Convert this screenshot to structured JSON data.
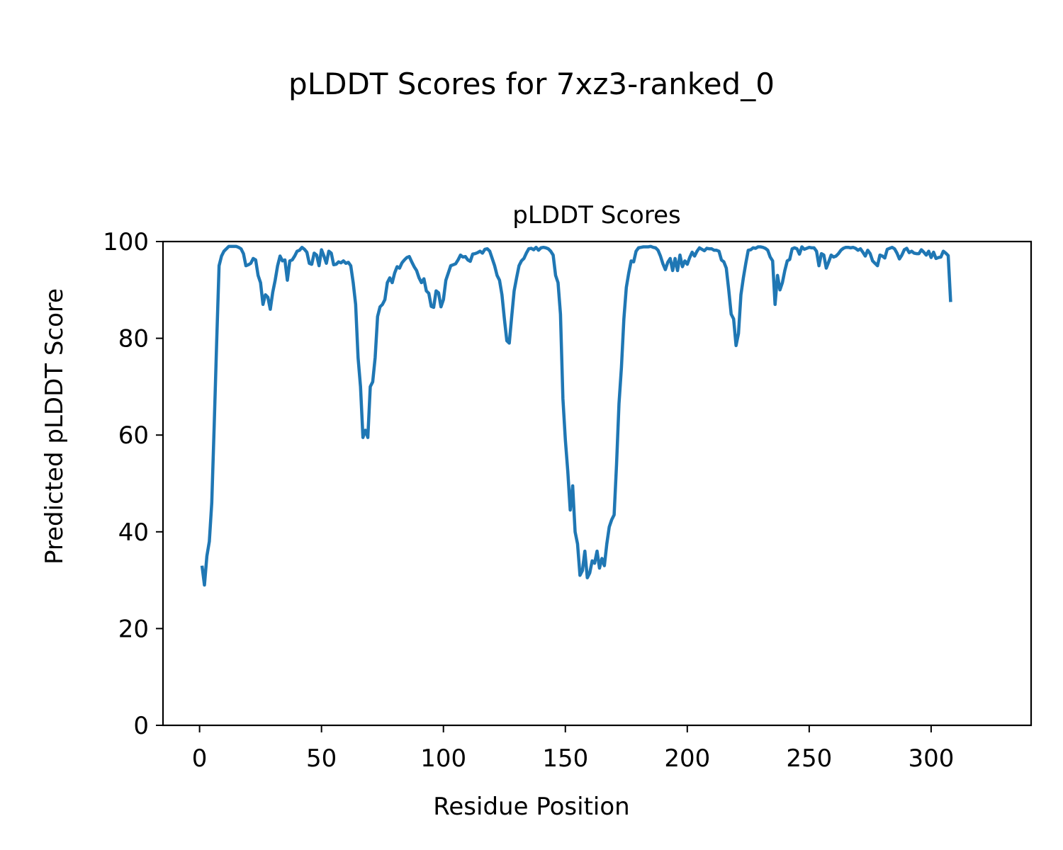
{
  "figure": {
    "suptitle": "pLDDT Scores for 7xz3-ranked_0"
  },
  "chart_data": {
    "type": "line",
    "title": "pLDDT Scores",
    "xlabel": "Residue Position",
    "ylabel": "Predicted pLDDT Score",
    "xlim": [
      -15,
      341
    ],
    "ylim": [
      0,
      100
    ],
    "x_ticks": [
      0,
      50,
      100,
      150,
      200,
      250,
      300
    ],
    "y_ticks": [
      0,
      20,
      40,
      60,
      80,
      100
    ],
    "grid": false,
    "line_color": "#1f77b4",
    "series": [
      {
        "x_start": 1,
        "values": [
          33,
          29,
          35,
          38,
          46,
          62,
          79,
          95,
          97,
          98,
          98.5,
          99,
          99,
          99,
          99,
          98.8,
          98.5,
          97.5,
          95,
          95.2,
          95.5,
          96.5,
          96.2,
          93,
          91.5,
          87,
          89,
          88.5,
          86,
          89.5,
          92,
          95,
          97,
          96,
          96.2,
          92,
          96,
          96.2,
          97,
          98,
          98.2,
          98.8,
          98.4,
          97.8,
          95.5,
          95.3,
          97.6,
          97.2,
          95,
          98.3,
          97,
          95.5,
          98,
          97.6,
          95.2,
          95.3,
          95.8,
          95.6,
          96,
          95.5,
          95.7,
          95,
          91.5,
          87,
          76,
          70,
          59.5,
          61,
          59.5,
          70,
          71,
          76,
          84.5,
          86.5,
          87,
          88,
          91.5,
          92.5,
          91.5,
          93.5,
          94.8,
          94.5,
          95.6,
          96.2,
          96.7,
          96.9,
          95.8,
          94.8,
          94,
          92.5,
          91.5,
          92.3,
          89.8,
          89.3,
          86.6,
          86.4,
          89.8,
          89.4,
          86.5,
          88,
          92,
          93.5,
          95,
          95.2,
          95.4,
          96.2,
          97.2,
          96.8,
          96.9,
          96.2,
          95.9,
          97.4,
          97.5,
          97.7,
          98,
          97.6,
          98.4,
          98.5,
          98,
          96.5,
          95,
          93,
          92,
          89,
          84,
          79.5,
          79,
          84.5,
          89.8,
          92.5,
          95,
          96,
          96.5,
          97.6,
          98.5,
          98.6,
          98.3,
          98.8,
          98.2,
          98.7,
          98.8,
          98.7,
          98.5,
          98,
          97.2,
          93,
          91.5,
          85,
          67.5,
          59,
          52.5,
          44.5,
          49.5,
          40,
          37.5,
          31,
          32,
          36,
          30.5,
          31.5,
          34,
          33.5,
          36,
          32.5,
          34.5,
          33,
          37.5,
          41,
          42.5,
          43.5,
          54,
          66.5,
          74,
          84,
          90.5,
          93.5,
          96,
          95.8,
          98,
          98.7,
          98.8,
          98.9,
          98.9,
          98.9,
          99,
          98.8,
          98.7,
          98.2,
          97,
          95.4,
          94.2,
          95.7,
          96.5,
          94,
          96.5,
          94,
          97.2,
          94.8,
          96,
          95.3,
          96.7,
          97.8,
          97,
          98,
          98.7,
          98.4,
          98.1,
          98.6,
          98.5,
          98.5,
          98.2,
          98.2,
          98,
          96.2,
          95.8,
          94.5,
          90,
          85,
          84,
          78.5,
          81,
          89,
          92.5,
          95.5,
          98.2,
          98.3,
          98.7,
          98.6,
          98.9,
          98.9,
          98.8,
          98.6,
          98.2,
          96.8,
          96,
          87,
          93,
          90,
          91.5,
          94,
          96,
          96.3,
          98.5,
          98.7,
          98.5,
          97.4,
          98.9,
          98.4,
          98.6,
          98.8,
          98.7,
          98.7,
          98,
          95,
          97.5,
          97.2,
          94.5,
          95.8,
          97.2,
          96.8,
          97,
          97.5,
          98.2,
          98.6,
          98.8,
          98.8,
          98.7,
          98.8,
          98.6,
          98.2,
          98.5,
          97.8,
          97,
          98.2,
          97.5,
          96,
          95.5,
          95,
          97.2,
          97,
          96.6,
          98.4,
          98.6,
          98.8,
          98.5,
          97.6,
          96.4,
          97.2,
          98.3,
          98.6,
          97.7,
          98,
          97.6,
          97.5,
          97.5,
          98.3,
          97.8,
          97.2,
          98,
          96.7,
          97.8,
          96.5,
          96.7,
          96.8,
          98,
          97.6,
          97.1,
          87.5
        ]
      }
    ]
  }
}
